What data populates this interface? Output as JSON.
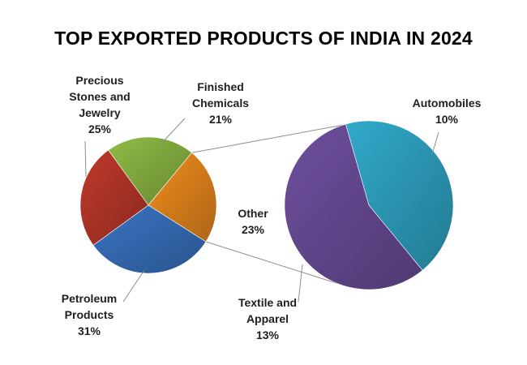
{
  "chart_data": {
    "type": "pie",
    "subtype": "pie-of-pie",
    "title": "TOP EXPORTED PRODUCTS OF INDIA IN 2024",
    "main_pie": {
      "slices": [
        {
          "name": "Precious Stones and Jewelry",
          "label_lines": [
            "Precious",
            "Stones and",
            "Jewelry"
          ],
          "value": 25,
          "pct_label": "25%",
          "color": "#c0392b"
        },
        {
          "name": "Finished Chemicals",
          "label_lines": [
            "Finished",
            "Chemicals"
          ],
          "value": 21,
          "pct_label": "21%",
          "color": "#8fbc45"
        },
        {
          "name": "Other",
          "label_lines": [
            "Other"
          ],
          "value": 23,
          "pct_label": "23%",
          "color": "#f08c1e"
        },
        {
          "name": "Petroleum Products",
          "label_lines": [
            "Petroleum",
            "Products"
          ],
          "value": 31,
          "pct_label": "31%",
          "color": "#3a74c4"
        }
      ]
    },
    "secondary_pie": {
      "breaks_out": "Other",
      "slices": [
        {
          "name": "Automobiles",
          "label_lines": [
            "Automobiles"
          ],
          "value": 10,
          "pct_label": "10%",
          "color": "#31aacb"
        },
        {
          "name": "Textile and Apparel",
          "label_lines": [
            "Textile and",
            "Apparel"
          ],
          "value": 13,
          "pct_label": "13%",
          "color": "#6e4f9e"
        }
      ]
    }
  }
}
